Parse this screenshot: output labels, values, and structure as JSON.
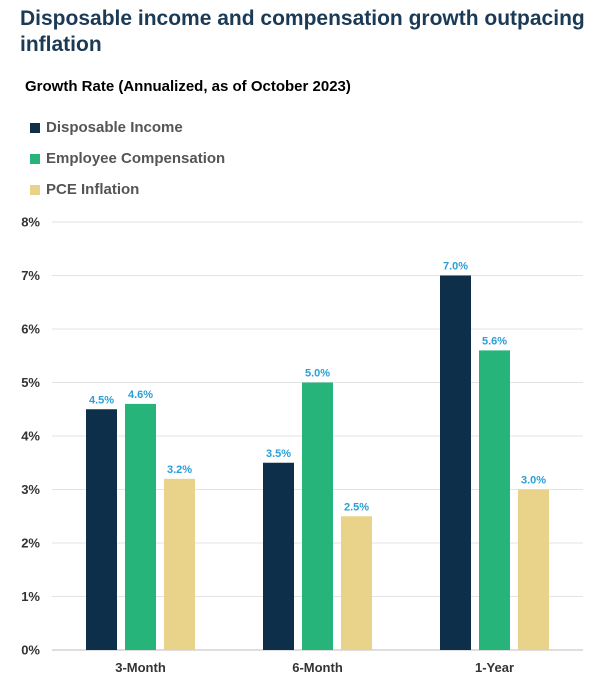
{
  "chart_data": {
    "type": "bar",
    "title": "Disposable income and compensation growth outpacing inflation",
    "subtitle": "Growth Rate (Annualized, as of October 2023)",
    "categories": [
      "3-Month",
      "6-Month",
      "1-Year"
    ],
    "series": [
      {
        "name": "Disposable Income",
        "color": "#0d2f4a",
        "values": [
          4.5,
          3.5,
          7.0
        ],
        "labels": [
          "4.5%",
          "3.5%",
          "7.0%"
        ]
      },
      {
        "name": "Employee Compensation",
        "color": "#26b47b",
        "values": [
          4.6,
          5.0,
          5.6
        ],
        "labels": [
          "4.6%",
          "5.0%",
          "5.6%"
        ]
      },
      {
        "name": "PCE Inflation",
        "color": "#e9d38a",
        "values": [
          3.2,
          2.5,
          3.0
        ],
        "labels": [
          "3.2%",
          "2.5%",
          "3.0%"
        ]
      }
    ],
    "ylim": [
      0,
      8
    ],
    "yticks": [
      "0%",
      "1%",
      "2%",
      "3%",
      "4%",
      "5%",
      "6%",
      "7%",
      "8%"
    ],
    "grid": true,
    "legend_position": "top-left",
    "data_label_color": "#2a9fd8"
  }
}
